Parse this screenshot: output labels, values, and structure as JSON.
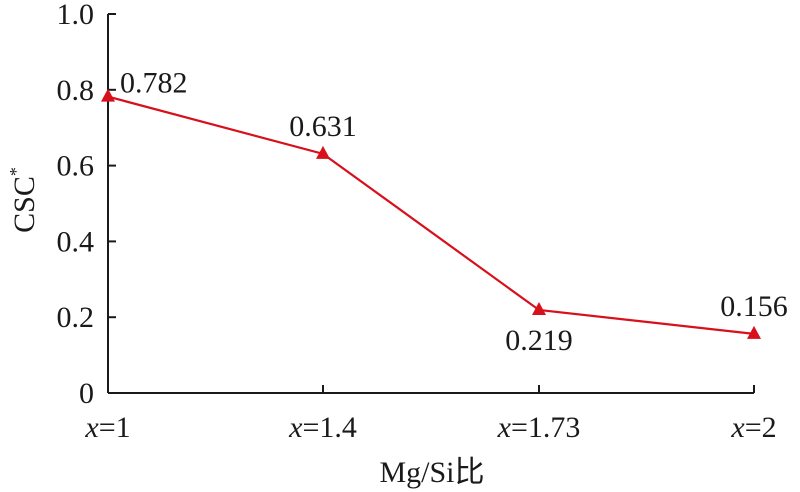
{
  "chart_data": {
    "type": "line",
    "categories": [
      "x=1",
      "x=1.4",
      "x=1.73",
      "x=2"
    ],
    "category_parts": [
      {
        "var": "x",
        "rest": "=1"
      },
      {
        "var": "x",
        "rest": "=1.4"
      },
      {
        "var": "x",
        "rest": "=1.73"
      },
      {
        "var": "x",
        "rest": "=2"
      }
    ],
    "series": [
      {
        "values": [
          0.782,
          0.631,
          0.219,
          0.156
        ],
        "color": "#d7101c",
        "marker": "triangle"
      }
    ],
    "data_labels": [
      "0.782",
      "0.631",
      "0.219",
      "0.156"
    ],
    "label_placement": [
      "right",
      "above",
      "below",
      "above"
    ],
    "xlabel": "Mg/Si比",
    "ylabel": "CSC",
    "ylabel_superscript": "*",
    "ylim": [
      0,
      1.0
    ],
    "yticks": [
      "0",
      "0.2",
      "0.4",
      "0.6",
      "0.8",
      "1.0"
    ],
    "ytick_values": [
      0,
      0.2,
      0.4,
      0.6,
      0.8,
      1.0
    ],
    "grid": false,
    "legend": "none"
  }
}
